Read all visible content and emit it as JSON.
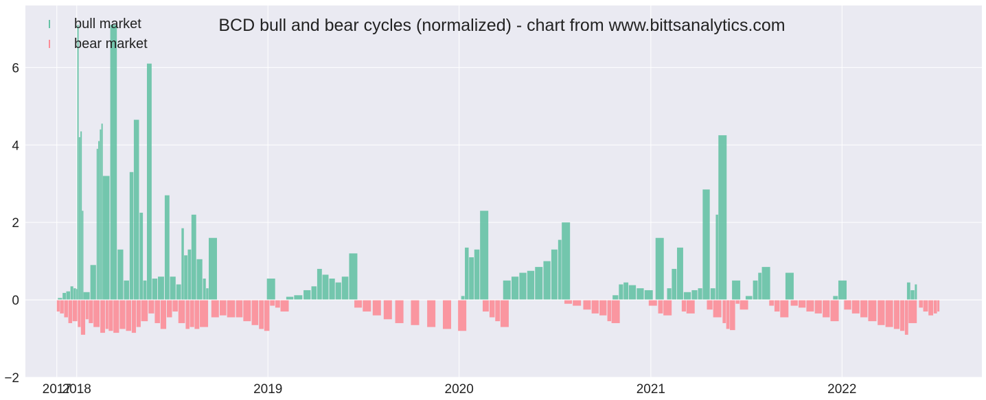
{
  "chart_data": {
    "type": "bar",
    "title": "BCD bull and bear cycles (normalized)  - chart from www.bittsanalytics.com",
    "xlabel": "",
    "ylabel": "",
    "xlim": [
      "2017-09-25",
      "2022-09-25"
    ],
    "ylim": [
      -2,
      7.6
    ],
    "x_ticks": [
      "2017-11-24",
      "2018-01-01",
      "2019-01-01",
      "2020-01-01",
      "2021-01-01",
      "2022-01-01"
    ],
    "x_tick_labels": [
      "2017",
      "2018",
      "2019",
      "2020",
      "2021",
      "2022"
    ],
    "y_ticks": [
      -2,
      0,
      2,
      4,
      6
    ],
    "y_tick_labels": [
      "−2",
      "0",
      "2",
      "4",
      "6"
    ],
    "grid": true,
    "legend_position": "upper-left",
    "colors": {
      "bull market": "#66c2a5",
      "bear market": "#fc8d97",
      "background": "#eaeaf2",
      "grid": "#ffffff"
    },
    "series": [
      {
        "name": "bull market",
        "values": [
          {
            "x": "2017-11-26",
            "y": 0.05
          },
          {
            "x": "2017-12-05",
            "y": 0.18
          },
          {
            "x": "2017-12-12",
            "y": 0.22
          },
          {
            "x": "2017-12-20",
            "y": 0.35
          },
          {
            "x": "2017-12-26",
            "y": 0.3
          },
          {
            "x": "2017-12-31",
            "y": 0.28
          },
          {
            "x": "2018-01-02",
            "y": 7.1
          },
          {
            "x": "2018-01-05",
            "y": 4.2
          },
          {
            "x": "2018-01-08",
            "y": 4.35
          },
          {
            "x": "2018-01-11",
            "y": 2.3
          },
          {
            "x": "2018-01-14",
            "y": 0.2
          },
          {
            "x": "2018-01-27",
            "y": 0.9
          },
          {
            "x": "2018-02-08",
            "y": 3.9
          },
          {
            "x": "2018-02-11",
            "y": 4.1
          },
          {
            "x": "2018-02-14",
            "y": 4.4
          },
          {
            "x": "2018-02-17",
            "y": 4.55
          },
          {
            "x": "2018-02-20",
            "y": 3.2
          },
          {
            "x": "2018-03-06",
            "y": 7.1
          },
          {
            "x": "2018-03-20",
            "y": 1.3
          },
          {
            "x": "2018-04-01",
            "y": 0.5
          },
          {
            "x": "2018-04-12",
            "y": 3.3
          },
          {
            "x": "2018-04-20",
            "y": 4.65
          },
          {
            "x": "2018-05-01",
            "y": 2.25
          },
          {
            "x": "2018-05-08",
            "y": 0.5
          },
          {
            "x": "2018-05-15",
            "y": 6.1
          },
          {
            "x": "2018-05-25",
            "y": 0.55
          },
          {
            "x": "2018-06-05",
            "y": 0.6
          },
          {
            "x": "2018-06-18",
            "y": 2.7
          },
          {
            "x": "2018-06-28",
            "y": 0.6
          },
          {
            "x": "2018-07-10",
            "y": 0.4
          },
          {
            "x": "2018-07-20",
            "y": 1.85
          },
          {
            "x": "2018-07-25",
            "y": 1.15
          },
          {
            "x": "2018-08-01",
            "y": 1.3
          },
          {
            "x": "2018-08-08",
            "y": 2.2
          },
          {
            "x": "2018-08-18",
            "y": 1.05
          },
          {
            "x": "2018-08-30",
            "y": 0.55
          },
          {
            "x": "2018-09-05",
            "y": 0.3
          },
          {
            "x": "2018-09-10",
            "y": 1.6
          },
          {
            "x": "2018-12-30",
            "y": 0.55
          },
          {
            "x": "2019-02-05",
            "y": 0.08
          },
          {
            "x": "2019-02-20",
            "y": 0.12
          },
          {
            "x": "2019-03-10",
            "y": 0.25
          },
          {
            "x": "2019-03-25",
            "y": 0.35
          },
          {
            "x": "2019-04-05",
            "y": 0.8
          },
          {
            "x": "2019-04-15",
            "y": 0.65
          },
          {
            "x": "2019-04-28",
            "y": 0.55
          },
          {
            "x": "2019-05-10",
            "y": 0.45
          },
          {
            "x": "2019-05-22",
            "y": 0.6
          },
          {
            "x": "2019-06-05",
            "y": 1.2
          },
          {
            "x": "2020-01-05",
            "y": 0.1
          },
          {
            "x": "2020-01-12",
            "y": 1.35
          },
          {
            "x": "2020-01-20",
            "y": 1.1
          },
          {
            "x": "2020-01-30",
            "y": 1.3
          },
          {
            "x": "2020-02-10",
            "y": 2.3
          },
          {
            "x": "2020-03-25",
            "y": 0.5
          },
          {
            "x": "2020-04-10",
            "y": 0.6
          },
          {
            "x": "2020-04-25",
            "y": 0.7
          },
          {
            "x": "2020-05-10",
            "y": 0.75
          },
          {
            "x": "2020-05-25",
            "y": 0.85
          },
          {
            "x": "2020-06-10",
            "y": 1.0
          },
          {
            "x": "2020-06-25",
            "y": 1.3
          },
          {
            "x": "2020-07-08",
            "y": 1.55
          },
          {
            "x": "2020-07-15",
            "y": 2.0
          },
          {
            "x": "2020-10-20",
            "y": 0.12
          },
          {
            "x": "2020-11-01",
            "y": 0.4
          },
          {
            "x": "2020-11-10",
            "y": 0.45
          },
          {
            "x": "2020-11-20",
            "y": 0.38
          },
          {
            "x": "2020-12-05",
            "y": 0.3
          },
          {
            "x": "2020-12-20",
            "y": 0.25
          },
          {
            "x": "2021-01-10",
            "y": 1.6
          },
          {
            "x": "2021-02-01",
            "y": 0.3
          },
          {
            "x": "2021-02-10",
            "y": 0.8
          },
          {
            "x": "2021-02-20",
            "y": 1.35
          },
          {
            "x": "2021-03-05",
            "y": 0.2
          },
          {
            "x": "2021-03-20",
            "y": 0.25
          },
          {
            "x": "2021-04-01",
            "y": 0.3
          },
          {
            "x": "2021-04-10",
            "y": 2.85
          },
          {
            "x": "2021-04-25",
            "y": 0.3
          },
          {
            "x": "2021-05-05",
            "y": 2.2
          },
          {
            "x": "2021-05-10",
            "y": 4.25
          },
          {
            "x": "2021-06-05",
            "y": 0.5
          },
          {
            "x": "2021-07-01",
            "y": 0.1
          },
          {
            "x": "2021-07-15",
            "y": 0.5
          },
          {
            "x": "2021-07-25",
            "y": 0.7
          },
          {
            "x": "2021-08-01",
            "y": 0.85
          },
          {
            "x": "2021-09-15",
            "y": 0.7
          },
          {
            "x": "2021-12-15",
            "y": 0.1
          },
          {
            "x": "2021-12-25",
            "y": 0.5
          },
          {
            "x": "2022-05-05",
            "y": 0.45
          },
          {
            "x": "2022-05-12",
            "y": 0.25
          },
          {
            "x": "2022-05-20",
            "y": 0.4
          }
        ]
      },
      {
        "name": "bear market",
        "values": [
          {
            "x": "2017-11-24",
            "y": -0.3
          },
          {
            "x": "2017-11-30",
            "y": -0.35
          },
          {
            "x": "2017-12-08",
            "y": -0.45
          },
          {
            "x": "2017-12-16",
            "y": -0.6
          },
          {
            "x": "2017-12-24",
            "y": -0.55
          },
          {
            "x": "2018-01-03",
            "y": -0.7
          },
          {
            "x": "2018-01-09",
            "y": -0.9
          },
          {
            "x": "2018-01-18",
            "y": -0.5
          },
          {
            "x": "2018-01-24",
            "y": -0.6
          },
          {
            "x": "2018-02-02",
            "y": -0.7
          },
          {
            "x": "2018-02-15",
            "y": -0.85
          },
          {
            "x": "2018-02-25",
            "y": -0.75
          },
          {
            "x": "2018-03-03",
            "y": -0.8
          },
          {
            "x": "2018-03-12",
            "y": -0.85
          },
          {
            "x": "2018-03-24",
            "y": -0.75
          },
          {
            "x": "2018-04-05",
            "y": -0.8
          },
          {
            "x": "2018-04-16",
            "y": -0.85
          },
          {
            "x": "2018-04-25",
            "y": -0.7
          },
          {
            "x": "2018-05-04",
            "y": -0.55
          },
          {
            "x": "2018-05-18",
            "y": -0.35
          },
          {
            "x": "2018-05-30",
            "y": -0.6
          },
          {
            "x": "2018-06-10",
            "y": -0.75
          },
          {
            "x": "2018-06-22",
            "y": -0.45
          },
          {
            "x": "2018-07-03",
            "y": -0.3
          },
          {
            "x": "2018-07-14",
            "y": -0.6
          },
          {
            "x": "2018-07-28",
            "y": -0.75
          },
          {
            "x": "2018-08-05",
            "y": -0.7
          },
          {
            "x": "2018-08-14",
            "y": -0.75
          },
          {
            "x": "2018-08-24",
            "y": -0.7
          },
          {
            "x": "2018-09-15",
            "y": -0.45
          },
          {
            "x": "2018-10-01",
            "y": -0.4
          },
          {
            "x": "2018-10-15",
            "y": -0.45
          },
          {
            "x": "2018-11-01",
            "y": -0.45
          },
          {
            "x": "2018-11-15",
            "y": -0.55
          },
          {
            "x": "2018-12-01",
            "y": -0.65
          },
          {
            "x": "2018-12-15",
            "y": -0.75
          },
          {
            "x": "2018-12-25",
            "y": -0.8
          },
          {
            "x": "2019-01-05",
            "y": -0.15
          },
          {
            "x": "2019-01-15",
            "y": -0.2
          },
          {
            "x": "2019-01-25",
            "y": -0.3
          },
          {
            "x": "2019-06-15",
            "y": -0.2
          },
          {
            "x": "2019-07-01",
            "y": -0.3
          },
          {
            "x": "2019-07-20",
            "y": -0.4
          },
          {
            "x": "2019-08-10",
            "y": -0.5
          },
          {
            "x": "2019-09-01",
            "y": -0.6
          },
          {
            "x": "2019-10-01",
            "y": -0.65
          },
          {
            "x": "2019-11-01",
            "y": -0.7
          },
          {
            "x": "2019-12-01",
            "y": -0.75
          },
          {
            "x": "2019-12-30",
            "y": -0.8
          },
          {
            "x": "2020-02-15",
            "y": -0.3
          },
          {
            "x": "2020-02-28",
            "y": -0.45
          },
          {
            "x": "2020-03-10",
            "y": -0.55
          },
          {
            "x": "2020-03-20",
            "y": -0.7
          },
          {
            "x": "2020-07-20",
            "y": -0.1
          },
          {
            "x": "2020-08-05",
            "y": -0.15
          },
          {
            "x": "2020-08-25",
            "y": -0.25
          },
          {
            "x": "2020-09-10",
            "y": -0.35
          },
          {
            "x": "2020-09-25",
            "y": -0.4
          },
          {
            "x": "2020-10-10",
            "y": -0.55
          },
          {
            "x": "2020-10-18",
            "y": -0.6
          },
          {
            "x": "2020-12-28",
            "y": -0.15
          },
          {
            "x": "2021-01-15",
            "y": -0.35
          },
          {
            "x": "2021-01-25",
            "y": -0.4
          },
          {
            "x": "2021-03-01",
            "y": -0.3
          },
          {
            "x": "2021-03-10",
            "y": -0.35
          },
          {
            "x": "2021-04-18",
            "y": -0.25
          },
          {
            "x": "2021-04-30",
            "y": -0.45
          },
          {
            "x": "2021-05-18",
            "y": -0.6
          },
          {
            "x": "2021-05-25",
            "y": -0.75
          },
          {
            "x": "2021-06-01",
            "y": -0.78
          },
          {
            "x": "2021-06-12",
            "y": -0.1
          },
          {
            "x": "2021-06-20",
            "y": -0.25
          },
          {
            "x": "2021-08-15",
            "y": -0.15
          },
          {
            "x": "2021-08-25",
            "y": -0.3
          },
          {
            "x": "2021-09-05",
            "y": -0.45
          },
          {
            "x": "2021-09-25",
            "y": -0.15
          },
          {
            "x": "2021-10-10",
            "y": -0.2
          },
          {
            "x": "2021-10-25",
            "y": -0.3
          },
          {
            "x": "2021-11-10",
            "y": -0.35
          },
          {
            "x": "2021-11-25",
            "y": -0.45
          },
          {
            "x": "2021-12-10",
            "y": -0.55
          },
          {
            "x": "2022-01-05",
            "y": -0.25
          },
          {
            "x": "2022-01-20",
            "y": -0.35
          },
          {
            "x": "2022-02-05",
            "y": -0.45
          },
          {
            "x": "2022-02-20",
            "y": -0.55
          },
          {
            "x": "2022-03-10",
            "y": -0.65
          },
          {
            "x": "2022-03-25",
            "y": -0.7
          },
          {
            "x": "2022-04-10",
            "y": -0.75
          },
          {
            "x": "2022-04-22",
            "y": -0.8
          },
          {
            "x": "2022-05-01",
            "y": -0.9
          },
          {
            "x": "2022-05-08",
            "y": -0.6
          },
          {
            "x": "2022-05-28",
            "y": -0.2
          },
          {
            "x": "2022-06-05",
            "y": -0.3
          },
          {
            "x": "2022-06-15",
            "y": -0.4
          },
          {
            "x": "2022-06-25",
            "y": -0.35
          },
          {
            "x": "2022-07-02",
            "y": -0.3
          }
        ]
      }
    ]
  }
}
